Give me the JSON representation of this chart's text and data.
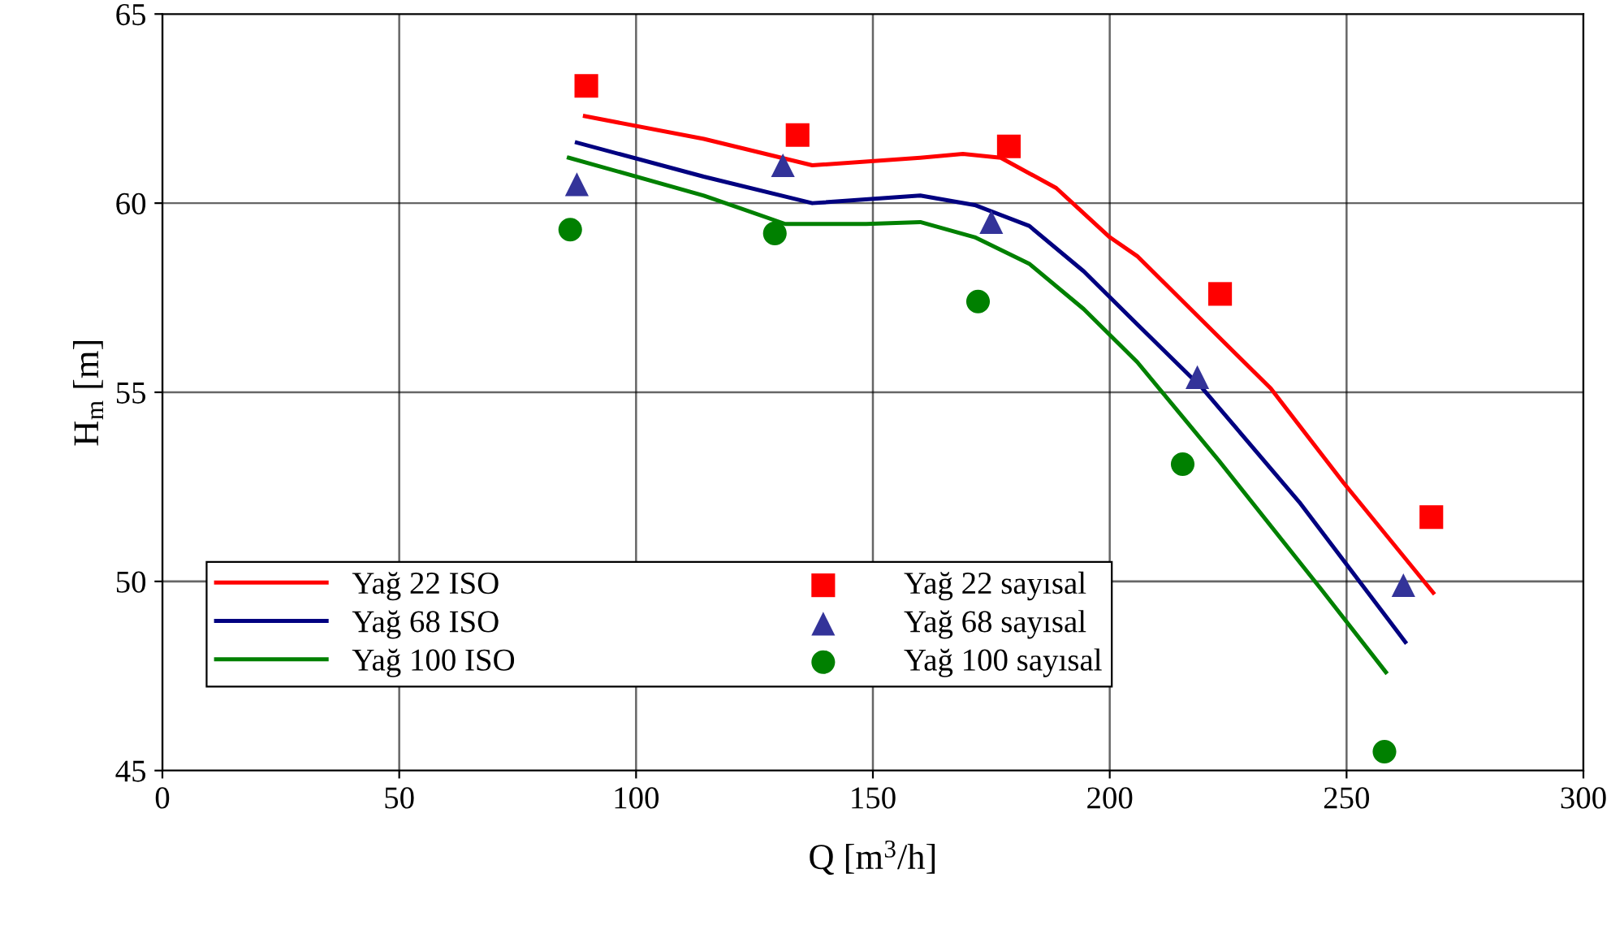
{
  "chart_data": {
    "type": "line",
    "xlabel": "Q [m$^{3}$/h]",
    "ylabel": "H$_{m}$ [m]",
    "xlim": [
      0,
      300
    ],
    "xticks": [
      0,
      50,
      100,
      150,
      200,
      250,
      300
    ],
    "ylim": [
      45,
      65
    ],
    "yticks": [
      45,
      50,
      55,
      60,
      65
    ],
    "grid": true,
    "legend": "bottom left",
    "series": [
      {
        "name": "Yağ 22 ISO",
        "color": "#ff0000",
        "marker": "none",
        "x": [
          89.2,
          114.3,
          137.2,
          160,
          169,
          177,
          188.7,
          200,
          205.8,
          234,
          249.4,
          268.3
        ],
        "values": [
          62.3,
          61.7,
          61.0,
          61.2,
          61.3,
          61.2,
          60.4,
          59.1,
          58.6,
          55.1,
          52.6,
          49.7
        ]
      },
      {
        "name": "Yağ 68 ISO",
        "color": "#000080",
        "marker": "none",
        "x": [
          87.5,
          114.3,
          137.2,
          160,
          171.5,
          183,
          194.5,
          205.8,
          219.6,
          240,
          262.4
        ],
        "values": [
          61.6,
          60.7,
          60.0,
          60.2,
          59.95,
          59.4,
          58.2,
          56.8,
          55.1,
          52.1,
          48.4
        ]
      },
      {
        "name": "Yağ 100 ISO",
        "color": "#008000",
        "marker": "none",
        "x": [
          85.8,
          114.3,
          131.5,
          148.6,
          160,
          171.5,
          183,
          194.5,
          205.8,
          223,
          244.6,
          258.3
        ],
        "values": [
          61.2,
          60.2,
          59.45,
          59.45,
          59.5,
          59.1,
          58.4,
          57.2,
          55.8,
          53.2,
          49.8,
          47.6
        ]
      },
      {
        "name": "Yağ 22 sayısal",
        "type": "scatter",
        "color": "#ff0000",
        "marker": "square",
        "x": [
          89.5,
          134.1,
          178.7,
          223.3,
          267.9
        ],
        "values": [
          63.1,
          61.8,
          61.5,
          57.6,
          51.7
        ]
      },
      {
        "name": "Yağ 68 sayısal",
        "type": "scatter",
        "color": "#333399",
        "marker": "triangle",
        "x": [
          87.5,
          131.0,
          175.0,
          218.5,
          262.0
        ],
        "values": [
          60.5,
          61.0,
          59.5,
          55.4,
          49.9
        ]
      },
      {
        "name": "Yağ 100 sayısal",
        "type": "scatter",
        "color": "#008000",
        "marker": "circle",
        "x": [
          86.1,
          129.3,
          172.2,
          215.4,
          258.0
        ],
        "values": [
          59.3,
          59.2,
          57.4,
          53.1,
          45.5
        ]
      }
    ]
  }
}
